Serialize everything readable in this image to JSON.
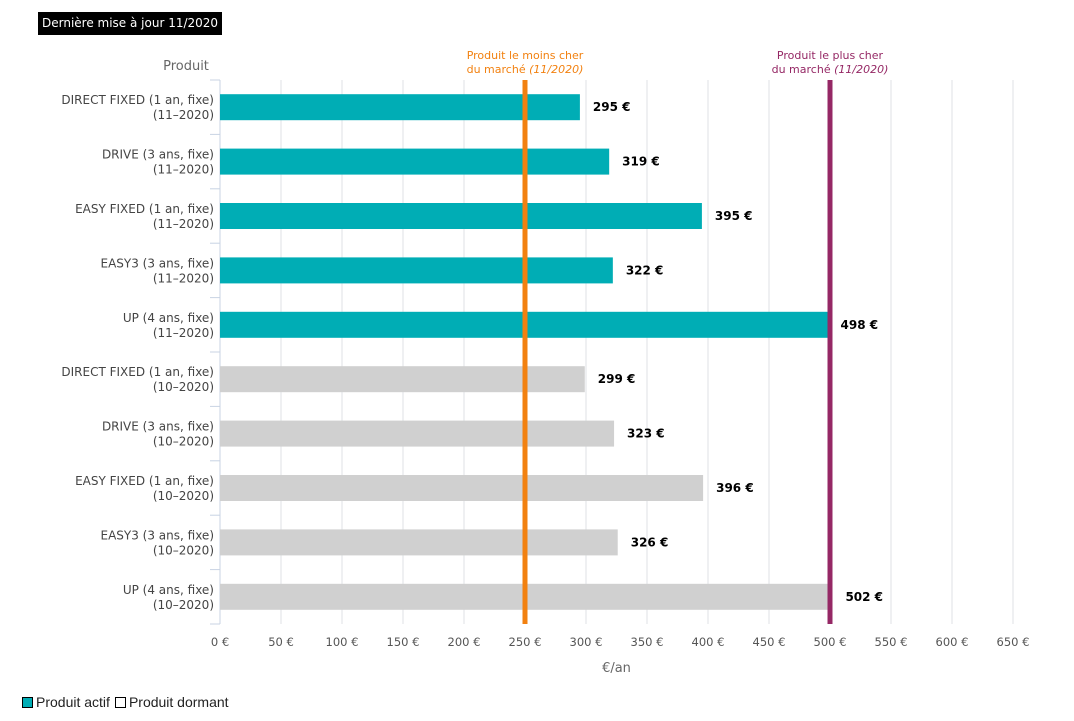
{
  "update_badge": "Dernière mise à jour 11/2020",
  "legend": {
    "items": [
      {
        "label": "Produit actif",
        "color": "#00adb5"
      },
      {
        "label": "Produit dormant",
        "color": "#ffffff"
      }
    ]
  },
  "colors": {
    "active": "#00adb5",
    "dormant": "#d0d0d0",
    "min_line": "#f28110",
    "max_line": "#952865",
    "grid": "#dfe2e6"
  },
  "chart_data": {
    "type": "bar",
    "orientation": "horizontal",
    "y_title": "Produit",
    "xlabel": "€/an",
    "xlim": [
      0,
      650
    ],
    "x_ticks": [
      0,
      50,
      100,
      150,
      200,
      250,
      300,
      350,
      400,
      450,
      500,
      550,
      600,
      650
    ],
    "x_tick_labels": [
      "0 €",
      "50 €",
      "100 €",
      "150 €",
      "200 €",
      "250 €",
      "300 €",
      "350 €",
      "400 €",
      "450 €",
      "500 €",
      "550 €",
      "600 €",
      "650 €"
    ],
    "grid": true,
    "categories": [
      {
        "line1": "DIRECT FIXED (1 an, fixe)",
        "line2": "(11–2020)",
        "value": 295,
        "value_label": "295 €",
        "status": "active"
      },
      {
        "line1": "DRIVE (3 ans, fixe)",
        "line2": "(11–2020)",
        "value": 319,
        "value_label": "319 €",
        "status": "active"
      },
      {
        "line1": "EASY FIXED (1 an, fixe)",
        "line2": "(11–2020)",
        "value": 395,
        "value_label": "395 €",
        "status": "active"
      },
      {
        "line1": "EASY3 (3 ans, fixe)",
        "line2": "(11–2020)",
        "value": 322,
        "value_label": "322 €",
        "status": "active"
      },
      {
        "line1": "UP (4 ans, fixe)",
        "line2": "(11–2020)",
        "value": 498,
        "value_label": "498 €",
        "status": "active"
      },
      {
        "line1": "DIRECT FIXED (1 an, fixe)",
        "line2": "(10–2020)",
        "value": 299,
        "value_label": "299 €",
        "status": "dormant"
      },
      {
        "line1": "DRIVE (3 ans, fixe)",
        "line2": "(10–2020)",
        "value": 323,
        "value_label": "323 €",
        "status": "dormant"
      },
      {
        "line1": "EASY FIXED (1 an, fixe)",
        "line2": "(10–2020)",
        "value": 396,
        "value_label": "396 €",
        "status": "dormant"
      },
      {
        "line1": "EASY3 (3 ans, fixe)",
        "line2": "(10–2020)",
        "value": 326,
        "value_label": "326 €",
        "status": "dormant"
      },
      {
        "line1": "UP (4 ans, fixe)",
        "line2": "(10–2020)",
        "value": 502,
        "value_label": "502 €",
        "status": "dormant"
      }
    ],
    "reference_lines": [
      {
        "value": 250,
        "line1": "Produit le moins cher",
        "line2_text": "du marché ",
        "line2_italic": "(11/2020)",
        "color": "#f28110"
      },
      {
        "value": 500,
        "line1": "Produit le plus cher",
        "line2_text": "du marché ",
        "line2_italic": "(11/2020)",
        "color": "#952865"
      }
    ]
  }
}
